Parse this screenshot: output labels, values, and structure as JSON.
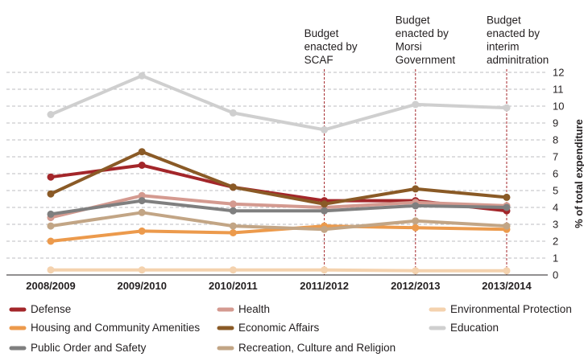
{
  "chart_data": {
    "type": "line",
    "categories": [
      "2008/2009",
      "2009/2010",
      "2010/2011",
      "2011/2012",
      "2012/2013",
      "2013/2014"
    ],
    "ylabel": "% of total expenditure",
    "ylim": [
      0,
      12
    ],
    "yticks": [
      0,
      1,
      2,
      3,
      4,
      5,
      6,
      7,
      8,
      9,
      10,
      11,
      12
    ],
    "grid": "horizontal dashed",
    "legend_position": "bottom",
    "series": [
      {
        "name": "Defense",
        "color": "#a3262a",
        "values": [
          5.8,
          6.5,
          5.2,
          4.4,
          4.4,
          3.8
        ]
      },
      {
        "name": "Health",
        "color": "#d49a90",
        "values": [
          3.4,
          4.7,
          4.2,
          4.0,
          4.3,
          4.1
        ]
      },
      {
        "name": "Environmental Protection",
        "color": "#f4d2ae",
        "values": [
          0.3,
          0.3,
          0.3,
          0.3,
          0.25,
          0.25
        ]
      },
      {
        "name": "Housing and Community Amenities",
        "color": "#ec9a4c",
        "values": [
          2.0,
          2.6,
          2.5,
          2.9,
          2.8,
          2.7
        ]
      },
      {
        "name": "Economic Affairs",
        "color": "#8a5a26",
        "values": [
          4.8,
          7.3,
          5.2,
          4.2,
          5.1,
          4.6
        ]
      },
      {
        "name": "Education",
        "color": "#cfcfcf",
        "values": [
          9.5,
          11.8,
          9.6,
          8.6,
          10.1,
          9.9
        ]
      },
      {
        "name": "Public Order and Safety",
        "color": "#7f7f7f",
        "values": [
          3.6,
          4.4,
          3.8,
          3.8,
          4.1,
          4.0
        ]
      },
      {
        "name": "Recreation, Culture and Religion",
        "color": "#c2a585",
        "values": [
          2.9,
          3.7,
          2.9,
          2.7,
          3.2,
          2.9
        ]
      }
    ],
    "annotations": [
      {
        "category": "2011/2012",
        "lines": [
          "Budget",
          "enacted by",
          "SCAF"
        ]
      },
      {
        "category": "2012/2013",
        "lines": [
          "Budget",
          "enacted by",
          "Morsi",
          "Government"
        ]
      },
      {
        "category": "2013/2014",
        "lines": [
          "Budget",
          "enacted by",
          "interim",
          "adminitration"
        ]
      }
    ]
  }
}
